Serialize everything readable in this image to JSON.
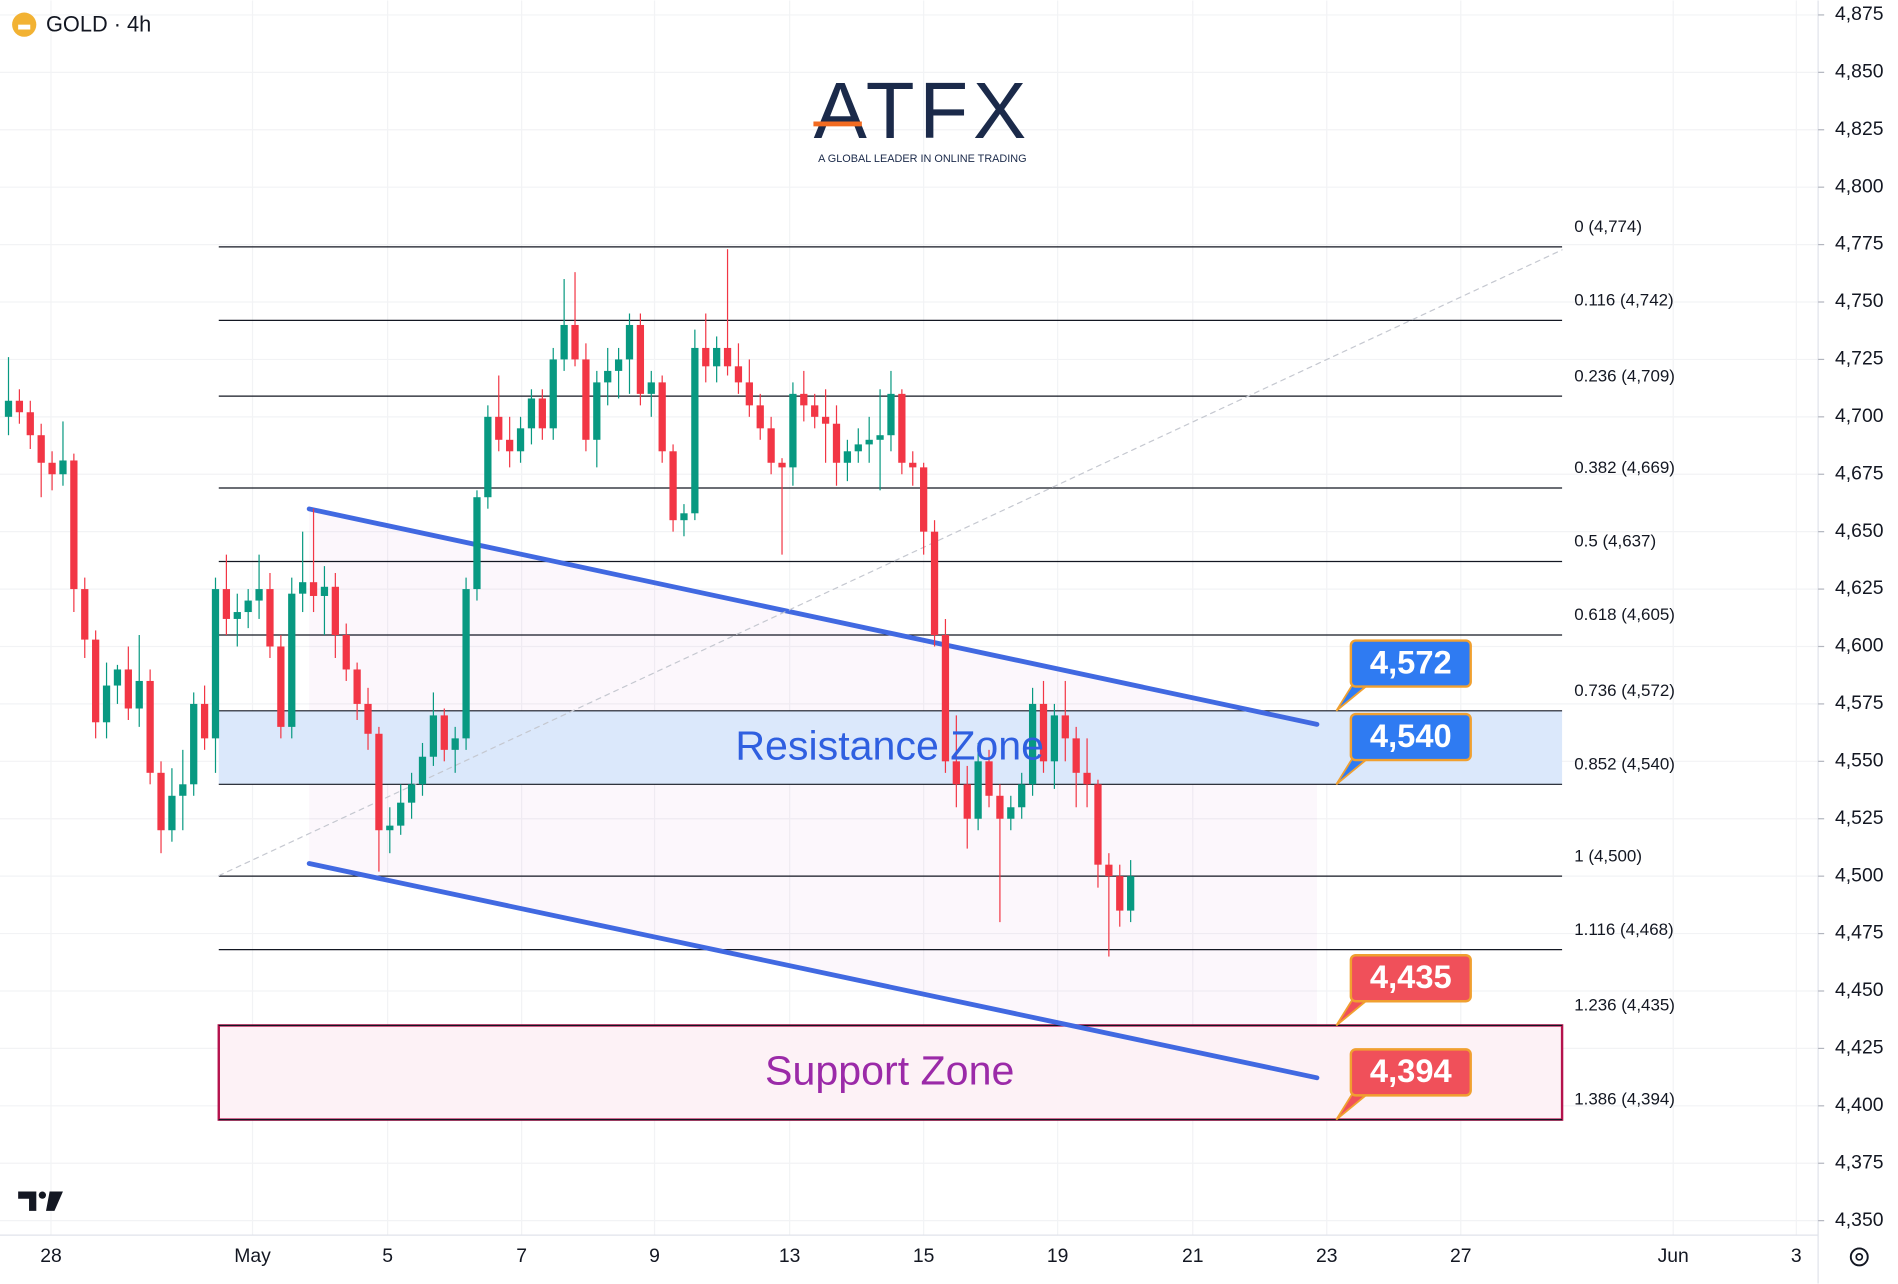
{
  "chart_data": {
    "type": "candlestick",
    "title": "GOLD · 4h",
    "logo": {
      "brand": "ATFX",
      "tagline": "A GLOBAL LEADER IN ONLINE TRADING"
    },
    "up_color": "#089981",
    "down_color": "#f23645",
    "grid": true,
    "x": [
      0,
      1,
      2,
      3,
      4,
      5,
      6,
      7,
      8,
      9,
      10,
      11,
      12,
      13,
      14,
      15,
      16,
      17,
      18,
      19,
      20,
      21,
      22,
      23,
      24,
      25,
      26,
      27,
      28,
      29,
      30,
      31,
      32,
      33,
      34,
      35,
      36,
      37,
      38,
      39,
      40,
      41,
      42,
      43,
      44,
      45,
      46,
      47,
      48,
      49,
      50,
      51,
      52,
      53,
      54,
      55,
      56,
      57,
      58,
      59,
      60,
      61,
      62,
      63,
      64,
      65,
      66,
      67,
      68,
      69,
      70,
      71,
      72,
      73,
      74,
      75,
      76,
      77,
      78,
      79,
      80,
      81,
      82,
      83,
      84,
      85,
      86,
      87,
      88,
      89,
      90,
      91,
      92,
      93,
      94,
      95,
      96,
      97,
      98,
      99,
      100,
      101,
      102,
      103
    ],
    "open": [
      4700,
      4707,
      4702,
      4692,
      4680,
      4675,
      4681,
      4625,
      4603,
      4567,
      4583,
      4590,
      4573,
      4585,
      4545,
      4520,
      4535,
      4540,
      4575,
      4560,
      4625,
      4612,
      4615,
      4620,
      4625,
      4600,
      4565,
      4623,
      4628,
      4622,
      4626,
      4605,
      4590,
      4575,
      4562,
      4520,
      4522,
      4532,
      4540,
      4552,
      4570,
      4555,
      4560,
      4625,
      4665,
      4700,
      4690,
      4685,
      4695,
      4708,
      4695,
      4725,
      4740,
      4725,
      4690,
      4715,
      4720,
      4725,
      4740,
      4710,
      4715,
      4685,
      4655,
      4658,
      4730,
      4722,
      4730,
      4722,
      4715,
      4705,
      4695,
      4680,
      4678,
      4710,
      4705,
      4700,
      4697,
      4680,
      4685,
      4688,
      4690,
      4692,
      4710,
      4680,
      4678,
      4650,
      4605,
      4550,
      4540,
      4525,
      4550,
      4535,
      4525,
      4530,
      4540,
      4575,
      4550,
      4570,
      4560,
      4545,
      4540,
      4505,
      4500,
      4485
    ],
    "high": [
      4726,
      4712,
      4707,
      4697,
      4685,
      4698,
      4684,
      4630,
      4607,
      4593,
      4592,
      4600,
      4605,
      4590,
      4550,
      4547,
      4555,
      4580,
      4583,
      4630,
      4640,
      4623,
      4625,
      4640,
      4632,
      4605,
      4630,
      4650,
      4660,
      4635,
      4632,
      4610,
      4593,
      4582,
      4565,
      4530,
      4540,
      4545,
      4558,
      4580,
      4573,
      4565,
      4630,
      4668,
      4705,
      4718,
      4700,
      4700,
      4712,
      4712,
      4730,
      4760,
      4763,
      4732,
      4720,
      4730,
      4730,
      4745,
      4745,
      4720,
      4718,
      4688,
      4662,
      4738,
      4745,
      4735,
      4773,
      4732,
      4725,
      4710,
      4700,
      4682,
      4715,
      4720,
      4710,
      4712,
      4705,
      4690,
      4695,
      4700,
      4712,
      4720,
      4712,
      4685,
      4680,
      4655,
      4612,
      4570,
      4548,
      4558,
      4555,
      4540,
      4535,
      4545,
      4582,
      4585,
      4575,
      4585,
      4565,
      4560,
      4542,
      4510,
      4505,
      4507
    ],
    "low": [
      4692,
      4697,
      4686,
      4665,
      4668,
      4670,
      4615,
      4595,
      4560,
      4560,
      4575,
      4568,
      4565,
      4540,
      4510,
      4515,
      4520,
      4535,
      4555,
      4545,
      4605,
      4600,
      4608,
      4612,
      4595,
      4560,
      4560,
      4615,
      4615,
      4605,
      4595,
      4585,
      4568,
      4555,
      4502,
      4510,
      4518,
      4525,
      4535,
      4548,
      4550,
      4545,
      4555,
      4620,
      4660,
      4685,
      4678,
      4680,
      4688,
      4690,
      4690,
      4720,
      4722,
      4685,
      4678,
      4705,
      4708,
      4710,
      4705,
      4700,
      4680,
      4650,
      4648,
      4655,
      4715,
      4715,
      4718,
      4710,
      4700,
      4690,
      4675,
      4640,
      4670,
      4698,
      4695,
      4680,
      4670,
      4672,
      4680,
      4680,
      4668,
      4685,
      4675,
      4670,
      4640,
      4600,
      4545,
      4530,
      4512,
      4520,
      4530,
      4480,
      4520,
      4525,
      4535,
      4545,
      4538,
      4550,
      4530,
      4530,
      4495,
      4465,
      4478,
      4480
    ],
    "close": [
      4707,
      4702,
      4692,
      4680,
      4675,
      4681,
      4625,
      4603,
      4567,
      4583,
      4590,
      4573,
      4585,
      4545,
      4520,
      4535,
      4540,
      4575,
      4560,
      4625,
      4612,
      4615,
      4620,
      4625,
      4600,
      4565,
      4623,
      4628,
      4622,
      4626,
      4605,
      4590,
      4575,
      4562,
      4520,
      4522,
      4532,
      4540,
      4552,
      4570,
      4555,
      4560,
      4625,
      4665,
      4700,
      4690,
      4685,
      4695,
      4708,
      4695,
      4725,
      4740,
      4725,
      4690,
      4715,
      4720,
      4725,
      4740,
      4710,
      4715,
      4685,
      4655,
      4658,
      4730,
      4722,
      4730,
      4722,
      4715,
      4705,
      4695,
      4680,
      4678,
      4710,
      4705,
      4700,
      4697,
      4680,
      4685,
      4688,
      4690,
      4692,
      4710,
      4680,
      4678,
      4650,
      4605,
      4550,
      4540,
      4525,
      4550,
      4535,
      4525,
      4530,
      4540,
      4575,
      4550,
      4570,
      4560,
      4545,
      4540,
      4505,
      4500,
      4485,
      4500
    ],
    "xlim": [
      -0.78,
      166.1
    ],
    "xticks": [
      {
        "value": 3.9,
        "label": "28"
      },
      {
        "value": 22.4,
        "label": "May"
      },
      {
        "value": 34.8,
        "label": "5"
      },
      {
        "value": 47.1,
        "label": "7"
      },
      {
        "value": 59.3,
        "label": "9"
      },
      {
        "value": 71.7,
        "label": "13"
      },
      {
        "value": 84,
        "label": "15"
      },
      {
        "value": 96.3,
        "label": "19"
      },
      {
        "value": 108.7,
        "label": "21"
      },
      {
        "value": 121,
        "label": "23"
      },
      {
        "value": 133.3,
        "label": "27"
      },
      {
        "value": 152.8,
        "label": "Jun"
      },
      {
        "value": 164.1,
        "label": "3"
      }
    ],
    "ylim": [
      4343.7,
      4881.3
    ],
    "yticks": [
      {
        "value": 4350,
        "label": "4,350"
      },
      {
        "value": 4375,
        "label": "4,375"
      },
      {
        "value": 4400,
        "label": "4,400"
      },
      {
        "value": 4425,
        "label": "4,425"
      },
      {
        "value": 4450,
        "label": "4,450"
      },
      {
        "value": 4475,
        "label": "4,475"
      },
      {
        "value": 4500,
        "label": "4,500"
      },
      {
        "value": 4525,
        "label": "4,525"
      },
      {
        "value": 4550,
        "label": "4,550"
      },
      {
        "value": 4575,
        "label": "4,575"
      },
      {
        "value": 4600,
        "label": "4,600"
      },
      {
        "value": 4625,
        "label": "4,625"
      },
      {
        "value": 4650,
        "label": "4,650"
      },
      {
        "value": 4675,
        "label": "4,675"
      },
      {
        "value": 4700,
        "label": "4,700"
      },
      {
        "value": 4725,
        "label": "4,725"
      },
      {
        "value": 4750,
        "label": "4,750"
      },
      {
        "value": 4775,
        "label": "4,775"
      },
      {
        "value": 4800,
        "label": "4,800"
      },
      {
        "value": 4825,
        "label": "4,825"
      },
      {
        "value": 4850,
        "label": "4,850"
      },
      {
        "value": 4875,
        "label": "4,875"
      }
    ],
    "fib": {
      "x_range": [
        19.3,
        142.6
      ],
      "color": "#131722",
      "levels": [
        {
          "value": 4774,
          "label": "0 (4,774)"
        },
        {
          "value": 4742,
          "label": "0.116 (4,742)"
        },
        {
          "value": 4709,
          "label": "0.236 (4,709)"
        },
        {
          "value": 4669,
          "label": "0.382 (4,669)"
        },
        {
          "value": 4637,
          "label": "0.5 (4,637)"
        },
        {
          "value": 4605,
          "label": "0.618 (4,605)"
        },
        {
          "value": 4572,
          "label": "0.736 (4,572)"
        },
        {
          "value": 4540,
          "label": "0.852 (4,540)"
        },
        {
          "value": 4500,
          "label": "1 (4,500)"
        },
        {
          "value": 4468,
          "label": "1.116 (4,468)"
        },
        {
          "value": 4435,
          "label": "1.236 (4,435)"
        },
        {
          "value": 4394,
          "label": "1.386 (4,394)"
        }
      ]
    },
    "zones": [
      {
        "name": "Resistance Zone",
        "range": [
          4540,
          4572
        ],
        "x_range": [
          19.3,
          142.6
        ],
        "fill": "#dbe8fb",
        "color": "#2f5fe0"
      },
      {
        "name": "Support Zone",
        "range": [
          4394,
          4435
        ],
        "x_range": [
          19.3,
          142.6
        ],
        "fill": "#fdf2f6",
        "color": "#9b2aa8",
        "border": "#b5124d"
      }
    ],
    "price_tags": [
      {
        "value": 4572,
        "label": "4,572",
        "color": "#2f7bf2"
      },
      {
        "value": 4540,
        "label": "4,540",
        "color": "#2f7bf2"
      },
      {
        "value": 4435,
        "label": "4,435",
        "color": "#f0505a"
      },
      {
        "value": 4394,
        "label": "4,394",
        "color": "#f0505a"
      }
    ],
    "trendlines": [
      {
        "x": [
          27.6,
          120.1
        ],
        "y": [
          4659.9,
          4566.1
        ],
        "color": "#4169e1",
        "style": "solid"
      },
      {
        "x": [
          27.6,
          120.1
        ],
        "y": [
          4505.5,
          4412.2
        ],
        "color": "#4169e1",
        "style": "solid"
      },
      {
        "x": [
          19.3,
          142.6
        ],
        "y": [
          4500.2,
          4772.7
        ],
        "color": "#c5c8d0",
        "style": "dashed"
      }
    ]
  }
}
